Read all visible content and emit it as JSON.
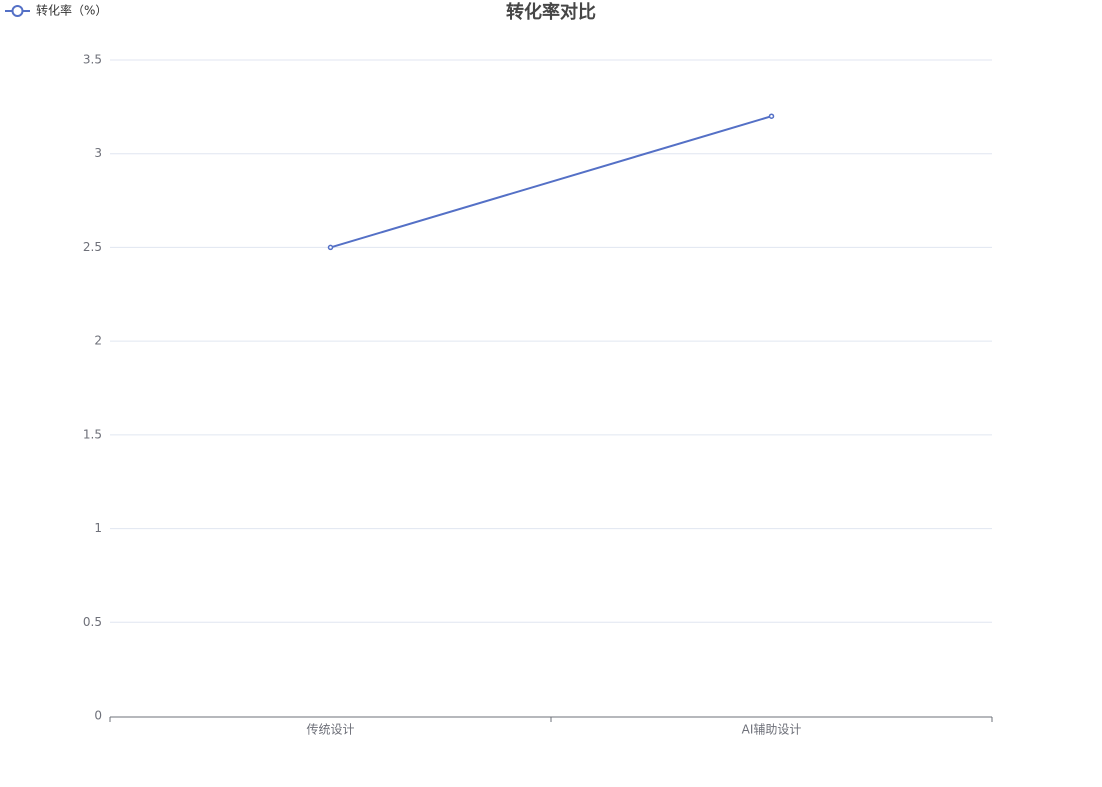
{
  "chart_data": {
    "type": "line",
    "title": "转化率对比",
    "categories": [
      "传统设计",
      "AI辅助设计"
    ],
    "series": [
      {
        "name": "转化率（%）",
        "color": "#5470c6",
        "values": [
          2.5,
          3.2
        ]
      }
    ],
    "ylim": [
      0,
      3.5
    ],
    "yticks": [
      0,
      0.5,
      1,
      1.5,
      2,
      2.5,
      3,
      3.5
    ],
    "grid": true,
    "legend": "top-left"
  }
}
